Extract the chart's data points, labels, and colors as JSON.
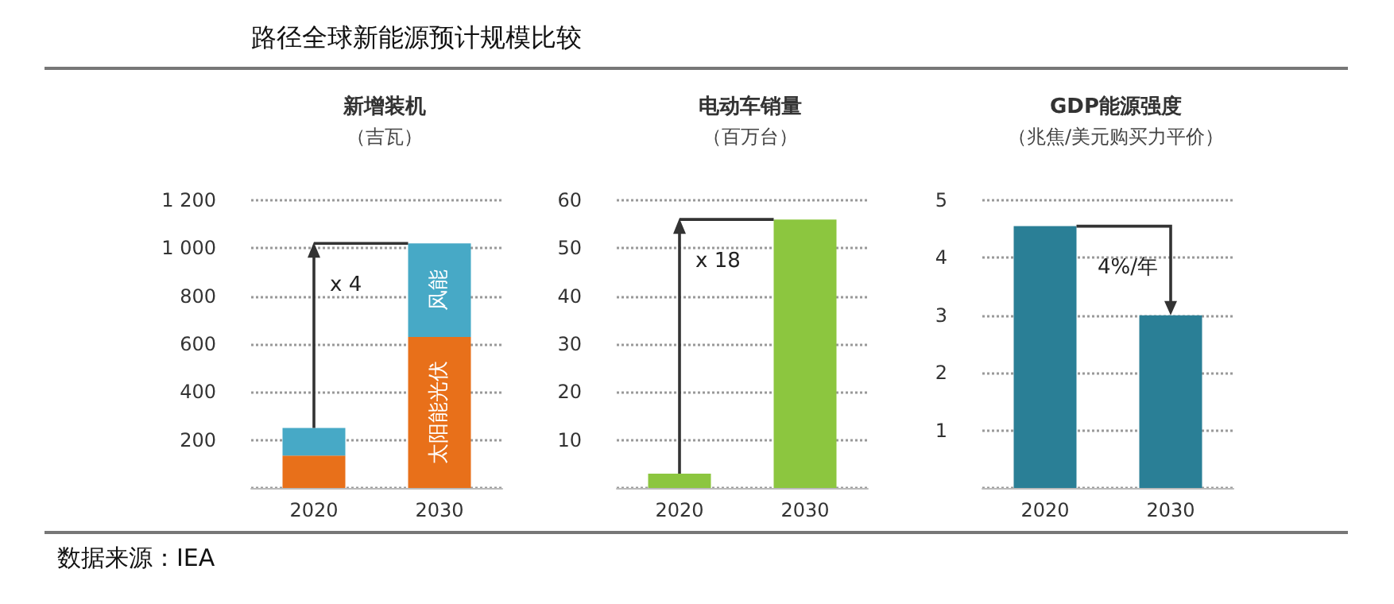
{
  "chart_data": [
    {
      "type": "bar",
      "title": "新增装机",
      "subtitle": "（吉瓦）",
      "categories": [
        "2020",
        "2030"
      ],
      "stacked": true,
      "grid": "y",
      "ylim": [
        0,
        1200
      ],
      "yticks": [
        200,
        400,
        600,
        800,
        {
          "value": 1000,
          "label": "1 000"
        },
        {
          "value": 1200,
          "label": "1 200"
        }
      ],
      "series": [
        {
          "name": "太阳能光伏",
          "color": "#e8701a",
          "values": [
            135,
            630
          ]
        },
        {
          "name": "风能",
          "color": "#47a9c6",
          "values": [
            115,
            390
          ]
        }
      ],
      "annotations": [
        "x 4"
      ]
    },
    {
      "type": "bar",
      "title": "电动车销量",
      "subtitle": "（百万台）",
      "categories": [
        "2020",
        "2030"
      ],
      "grid": "y",
      "ylim": [
        0,
        60
      ],
      "yticks": [
        10,
        20,
        30,
        40,
        50,
        60
      ],
      "color": "#8cc63f",
      "values": [
        3,
        56
      ],
      "annotations": [
        "x 18"
      ]
    },
    {
      "type": "bar",
      "title": "GDP能源强度",
      "subtitle": "（兆焦/美元购买力平价）",
      "categories": [
        "2020",
        "2030"
      ],
      "grid": "y",
      "ylim": [
        0,
        5
      ],
      "yticks": [
        1,
        2,
        3,
        4,
        5
      ],
      "color": "#2a7f96",
      "values": [
        4.55,
        3.0
      ],
      "annotations": [
        "4%/年"
      ]
    },
    {
      "type": "other",
      "title": "路径全球新能源预计规模比较",
      "annotations": [
        "数据来源：IEA"
      ]
    }
  ]
}
